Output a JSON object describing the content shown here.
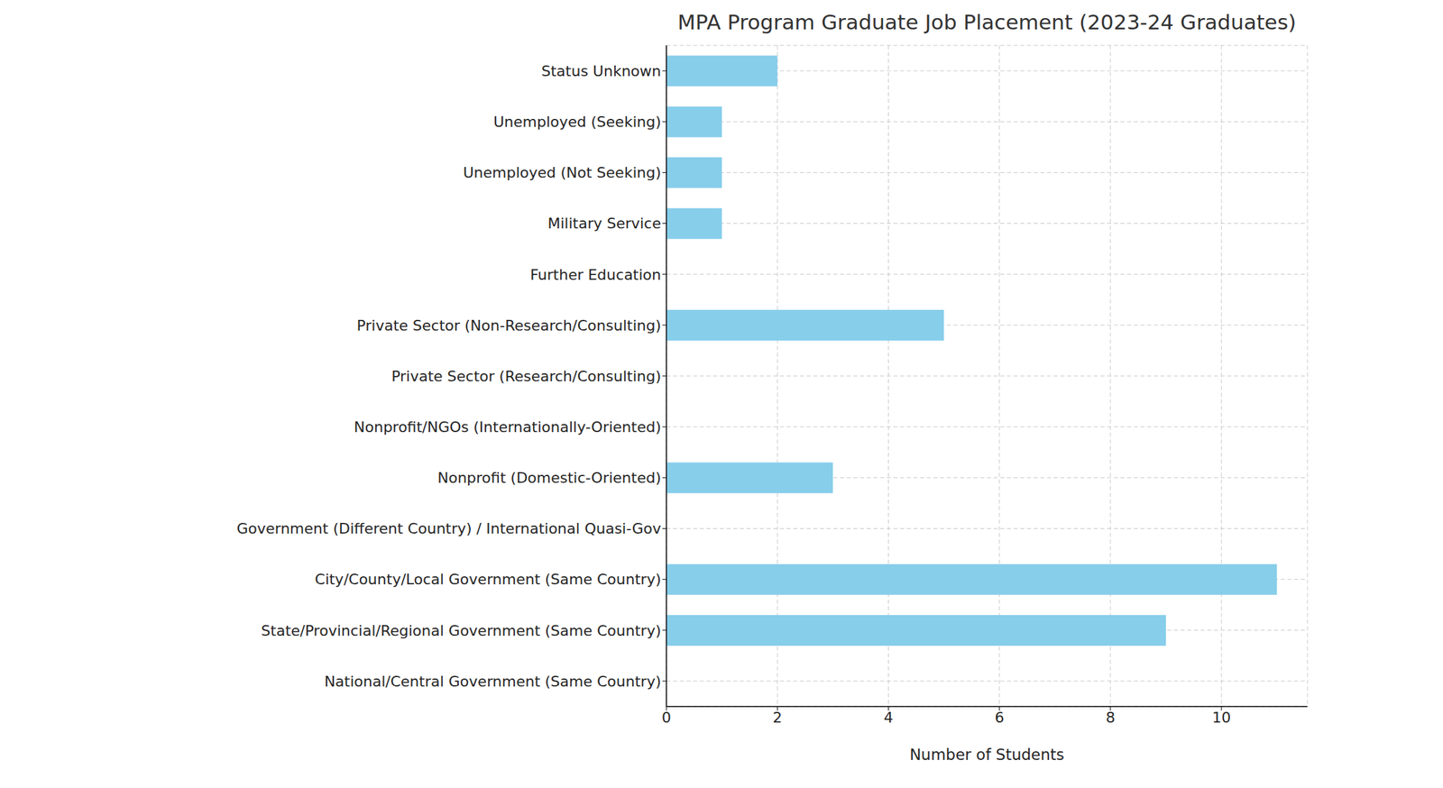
{
  "chart_data": {
    "type": "bar",
    "title": "MPA Program Graduate Job Placement (2023-24 Graduates)",
    "x_label": "Number of Students",
    "orientation": "horizontal",
    "categories": [
      "Status Unknown",
      "Unemployed (Seeking)",
      "Unemployed (Not Seeking)",
      "Military Service",
      "Further Education",
      "Private Sector (Non-Research/Consulting)",
      "Private Sector (Research/Consulting)",
      "Nonprofit/NGOs (Internationally-Oriented)",
      "Nonprofit (Domestic-Oriented)",
      "Government (Different Country) / International Quasi-Gov",
      "City/County/Local Government (Same Country)",
      "State/Provincial/Regional Government (Same Country)",
      "National/Central Government (Same Country)"
    ],
    "values": [
      2,
      1,
      1,
      1,
      0,
      5,
      0,
      0,
      3,
      0,
      11,
      9,
      0
    ],
    "color": "#87ceeb",
    "xlim": [
      0,
      11.55
    ],
    "xticks": [
      0,
      2,
      4,
      6,
      8,
      10
    ],
    "grid": true
  }
}
